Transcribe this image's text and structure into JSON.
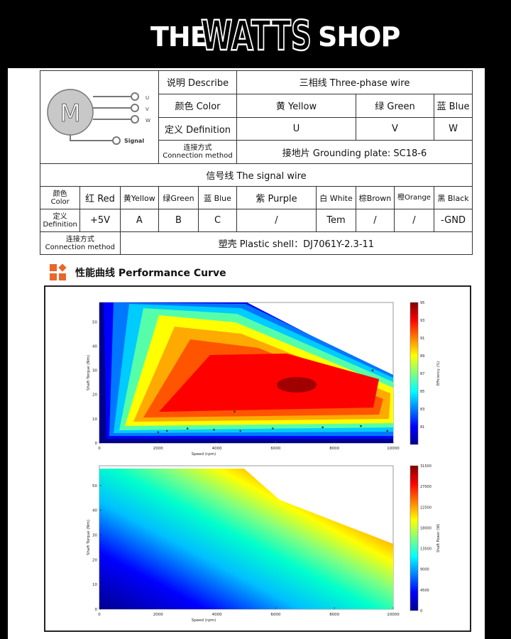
{
  "header": {
    "left": "THE",
    "middle": "WATTS",
    "right": "SHOP"
  },
  "motor_icon": {
    "letter": "M",
    "terminals": [
      "U",
      "V",
      "W"
    ],
    "signal_label": "Signal"
  },
  "phase_table": {
    "describe_label": "说明 Describe",
    "three_phase": "三相线 Three-phase wire",
    "color_label": "颜色 Color",
    "colors": [
      "黄 Yellow",
      "绿 Green",
      "蓝 Blue"
    ],
    "definition_label": "定义 Definition",
    "definitions": [
      "U",
      "V",
      "W"
    ],
    "connection_label_cn": "连接方式",
    "connection_label_en": "Connection method",
    "connection_value": "接地片 Grounding plate: SC18-6"
  },
  "signal_table": {
    "title": "信号线 The signal wire",
    "color_label_cn": "颜色",
    "color_label_en": "Color",
    "colors": [
      "红 Red",
      "黄Yellow",
      "绿Green",
      "蓝 Blue",
      "紫 Purple",
      "白 White",
      "棕Brown",
      "橙Orange",
      "黑 Black"
    ],
    "definition_label_cn": "定义",
    "definition_label_en": "Definition",
    "definitions": [
      "+5V",
      "A",
      "B",
      "C",
      "/",
      "Tem",
      "/",
      "/",
      "-GND"
    ],
    "connection_label_cn": "连接方式",
    "connection_label_en": "Connection method",
    "connection_value": "塑壳 Plastic shell：DJ7061Y-2.3-11"
  },
  "performance": {
    "title": "性能曲线 Performance Curve"
  },
  "chart_data": [
    {
      "type": "heatmap",
      "xlabel": "Speed (rpm)",
      "ylabel": "Shaft Torque (Nm)",
      "colorbar_label": "Efficiency (%)",
      "x_ticks": [
        0,
        2000,
        4000,
        6000,
        8000,
        10000
      ],
      "y_ticks": [
        0,
        10,
        20,
        30,
        40,
        50
      ],
      "xlim": [
        0,
        10000
      ],
      "ylim": [
        0,
        58
      ],
      "colorbar_ticks": [
        81,
        83,
        85,
        87,
        89,
        91,
        93,
        95
      ],
      "colorbar_range": [
        79,
        95
      ],
      "peak_region": {
        "speed": 6800,
        "torque": 25,
        "value": 95
      }
    },
    {
      "type": "heatmap",
      "xlabel": "Speed (rpm)",
      "ylabel": "Shaft Torque (Nm)",
      "colorbar_label": "Shaft Power (W)",
      "x_ticks": [
        0,
        2000,
        4000,
        6000,
        8000,
        10000
      ],
      "y_ticks": [
        0,
        10,
        20,
        30,
        40,
        50
      ],
      "xlim": [
        0,
        10000
      ],
      "ylim": [
        0,
        58
      ],
      "colorbar_ticks": [
        0,
        4500,
        9000,
        13500,
        18000,
        22500,
        27000,
        31500
      ],
      "colorbar_range": [
        0,
        31500
      ]
    }
  ],
  "colors": {
    "background": "#000000",
    "sheet": "#ffffff",
    "icon_orange": "#e8672a"
  }
}
